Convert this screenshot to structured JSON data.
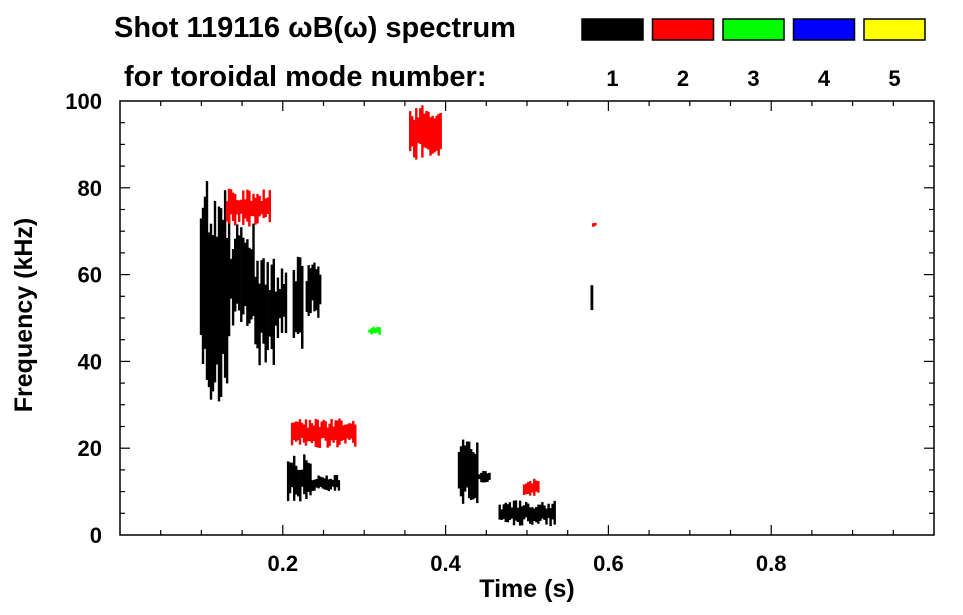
{
  "chart_data": {
    "type": "heatmap",
    "title_line1": "Shot 119116 ωB(ω) spectrum",
    "title_line2": "for toroidal mode number:",
    "xlabel": "Time (s)",
    "ylabel": "Frequency (kHz)",
    "xlim": [
      0.0,
      1.0
    ],
    "ylim": [
      0,
      100
    ],
    "x_ticks": [
      {
        "value": 0.2,
        "label": "0.2"
      },
      {
        "value": 0.4,
        "label": "0.4"
      },
      {
        "value": 0.6,
        "label": "0.6"
      },
      {
        "value": 0.8,
        "label": "0.8"
      }
    ],
    "y_ticks": [
      {
        "value": 0,
        "label": "0"
      },
      {
        "value": 20,
        "label": "20"
      },
      {
        "value": 40,
        "label": "40"
      },
      {
        "value": 60,
        "label": "60"
      },
      {
        "value": 80,
        "label": "80"
      },
      {
        "value": 100,
        "label": "100"
      }
    ],
    "legend": [
      {
        "label": "1",
        "color": "#000000"
      },
      {
        "label": "2",
        "color": "#ff0000"
      },
      {
        "label": "3",
        "color": "#00ff00"
      },
      {
        "label": "4",
        "color": "#0000ff"
      },
      {
        "label": "5",
        "color": "#ffff00"
      }
    ],
    "regions": [
      {
        "mode": 1,
        "t0": 0.098,
        "t1": 0.135,
        "f0": 30,
        "f1": 82
      },
      {
        "mode": 1,
        "t0": 0.135,
        "t1": 0.165,
        "f0": 48,
        "f1": 72
      },
      {
        "mode": 1,
        "t0": 0.165,
        "t1": 0.19,
        "f0": 38,
        "f1": 64
      },
      {
        "mode": 1,
        "t0": 0.19,
        "t1": 0.205,
        "f0": 45,
        "f1": 62
      },
      {
        "mode": 1,
        "t0": 0.212,
        "t1": 0.225,
        "f0": 42,
        "f1": 65
      },
      {
        "mode": 1,
        "t0": 0.228,
        "t1": 0.247,
        "f0": 50,
        "f1": 63
      },
      {
        "mode": 1,
        "t0": 0.205,
        "t1": 0.235,
        "f0": 7,
        "f1": 19
      },
      {
        "mode": 1,
        "t0": 0.235,
        "t1": 0.27,
        "f0": 10,
        "f1": 14
      },
      {
        "mode": 1,
        "t0": 0.415,
        "t1": 0.44,
        "f0": 5,
        "f1": 22
      },
      {
        "mode": 1,
        "t0": 0.44,
        "t1": 0.455,
        "f0": 12,
        "f1": 15
      },
      {
        "mode": 1,
        "t0": 0.465,
        "t1": 0.535,
        "f0": 2,
        "f1": 8
      },
      {
        "mode": 1,
        "t0": 0.578,
        "t1": 0.581,
        "f0": 49,
        "f1": 62
      },
      {
        "mode": 2,
        "t0": 0.355,
        "t1": 0.395,
        "f0": 86,
        "f1": 100
      },
      {
        "mode": 2,
        "t0": 0.13,
        "t1": 0.185,
        "f0": 71,
        "f1": 80
      },
      {
        "mode": 2,
        "t0": 0.21,
        "t1": 0.29,
        "f0": 20,
        "f1": 27
      },
      {
        "mode": 2,
        "t0": 0.495,
        "t1": 0.515,
        "f0": 9,
        "f1": 13
      },
      {
        "mode": 2,
        "t0": 0.58,
        "t1": 0.585,
        "f0": 71,
        "f1": 72
      },
      {
        "mode": 3,
        "t0": 0.305,
        "t1": 0.32,
        "f0": 46,
        "f1": 48
      }
    ]
  }
}
